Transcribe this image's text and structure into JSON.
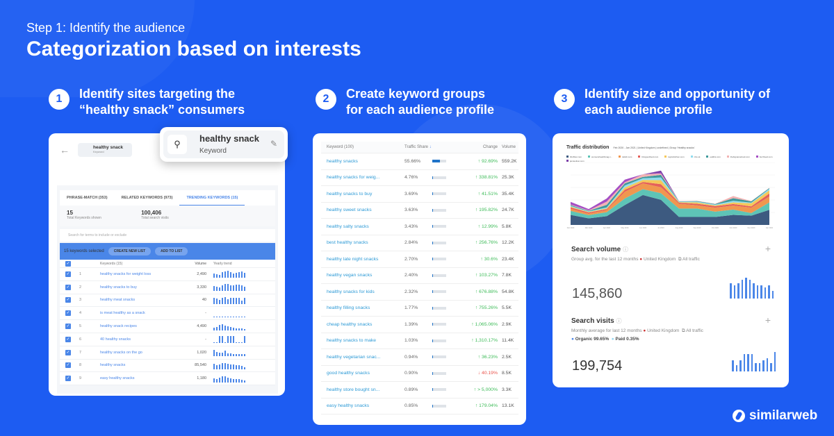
{
  "header": {
    "step": "Step 1: Identify the audience",
    "title": "Categorization based on interests"
  },
  "columns": [
    {
      "num": "1",
      "text": "Identify sites targeting the\n“healthy snack” consumers"
    },
    {
      "num": "2",
      "text": "Create keyword groups\nfor each audience profile"
    },
    {
      "num": "3",
      "text": "Identify size and opportunity of\neach audience profile"
    }
  ],
  "card1": {
    "search": {
      "value": "healthy snack",
      "type": "Keyword"
    },
    "tabs": [
      "PHRASE-MATCH (353)",
      "RELATED KEYWORDS (973)",
      "TRENDING KEYWORDS (15)"
    ],
    "stats": [
      {
        "value": "15",
        "label": "Total Keywords shown"
      },
      {
        "value": "100,406",
        "label": "Total search visits"
      }
    ],
    "search_placeholder": "Search for terms to include or exclude",
    "selected": "15 keywords selected",
    "create_list": "CREATE NEW LIST",
    "add_to_list": "ADD TO LIST",
    "columns": [
      "Keywords (15)",
      "Volume",
      "Yearly trend"
    ],
    "rows": [
      {
        "n": "1",
        "kw": "healthy snacks for weight loss",
        "vol": "2,490",
        "trend": [
          6,
          5,
          4,
          8,
          9,
          10,
          8,
          6,
          7,
          8,
          9,
          7
        ]
      },
      {
        "n": "2",
        "kw": "healthy snacks to buy",
        "vol": "3,330",
        "trend": [
          7,
          6,
          5,
          8,
          10,
          10,
          8,
          8,
          9,
          9,
          8,
          6
        ]
      },
      {
        "n": "3",
        "kw": "healthy meat snacks",
        "vol": "40",
        "trend": [
          9,
          8,
          6,
          9,
          10,
          7,
          9,
          9,
          9,
          9,
          5,
          9
        ]
      },
      {
        "n": "4",
        "kw": "is meat healthy as a snack",
        "vol": "-",
        "trend": [
          1,
          1,
          1,
          1,
          1,
          1,
          1,
          1,
          1,
          1,
          1,
          1
        ]
      },
      {
        "n": "5",
        "kw": "healthy snack recipes",
        "vol": "4,490",
        "trend": [
          4,
          5,
          8,
          9,
          7,
          6,
          5,
          4,
          3,
          3,
          3,
          2
        ]
      },
      {
        "n": "6",
        "kw": "40 healthy snacks",
        "vol": "-",
        "trend": [
          1,
          1,
          10,
          10,
          1,
          10,
          10,
          10,
          1,
          1,
          1,
          10
        ]
      },
      {
        "n": "7",
        "kw": "healthy snacks on the go",
        "vol": "1,020",
        "trend": [
          9,
          6,
          5,
          5,
          8,
          4,
          4,
          3,
          3,
          3,
          3,
          3
        ]
      },
      {
        "n": "8",
        "kw": "healthy snacks",
        "vol": "85,540",
        "trend": [
          8,
          6,
          7,
          9,
          9,
          8,
          7,
          7,
          6,
          6,
          5,
          3
        ]
      },
      {
        "n": "9",
        "kw": "easy healthy snacks",
        "vol": "1,180",
        "trend": [
          6,
          5,
          7,
          9,
          9,
          7,
          6,
          5,
          5,
          5,
          4,
          3
        ]
      }
    ]
  },
  "card2": {
    "columns": [
      "Keyword (100)",
      "Traffic Share",
      "Change",
      "Volume"
    ],
    "rows": [
      {
        "kw": "healthy snacks",
        "share": "55.66%",
        "pct": 55.66,
        "change": "92.69%",
        "dir": "up",
        "vol": "559.2K"
      },
      {
        "kw": "healthy snacks for weig...",
        "share": "4.76%",
        "pct": 4.76,
        "change": "338.81%",
        "dir": "up",
        "vol": "25.3K"
      },
      {
        "kw": "healthy snacks to buy",
        "share": "3.69%",
        "pct": 3.69,
        "change": "41.51%",
        "dir": "up",
        "vol": "35.4K"
      },
      {
        "kw": "healthy sweet snacks",
        "share": "3.63%",
        "pct": 3.63,
        "change": "195.82%",
        "dir": "up",
        "vol": "24.7K"
      },
      {
        "kw": "healthy salty snacks",
        "share": "3.43%",
        "pct": 3.43,
        "change": "12.99%",
        "dir": "up",
        "vol": "5.8K"
      },
      {
        "kw": "best healthy snacks",
        "share": "2.84%",
        "pct": 2.84,
        "change": "256.76%",
        "dir": "up",
        "vol": "12.2K"
      },
      {
        "kw": "healthy late night snacks",
        "share": "2.70%",
        "pct": 2.7,
        "change": "30.6%",
        "dir": "up",
        "vol": "23.4K"
      },
      {
        "kw": "healthy vegan snacks",
        "share": "2.40%",
        "pct": 2.4,
        "change": "103.27%",
        "dir": "up",
        "vol": "7.8K"
      },
      {
        "kw": "healthy snacks for kids",
        "share": "2.32%",
        "pct": 2.32,
        "change": "676.88%",
        "dir": "up",
        "vol": "54.8K"
      },
      {
        "kw": "healthy filling snacks",
        "share": "1.77%",
        "pct": 1.77,
        "change": "755.26%",
        "dir": "up",
        "vol": "5.5K"
      },
      {
        "kw": "cheap healthy snacks",
        "share": "1.39%",
        "pct": 1.39,
        "change": "1,065.06%",
        "dir": "up",
        "vol": "2.9K"
      },
      {
        "kw": "healthy snacks to make",
        "share": "1.03%",
        "pct": 1.03,
        "change": "1,310.17%",
        "dir": "up",
        "vol": "11.4K"
      },
      {
        "kw": "healthy vegetarian snac...",
        "share": "0.94%",
        "pct": 0.94,
        "change": "36.23%",
        "dir": "up",
        "vol": "2.5K"
      },
      {
        "kw": "good healthy snacks",
        "share": "0.90%",
        "pct": 0.9,
        "change": "40.19%",
        "dir": "down",
        "vol": "8.5K"
      },
      {
        "kw": "healthy store bought sn...",
        "share": "0.89%",
        "pct": 0.89,
        "change": "> 5,000%",
        "dir": "up",
        "vol": "3.3K"
      },
      {
        "kw": "easy healthy snacks",
        "share": "0.85%",
        "pct": 0.85,
        "change": "179.04%",
        "dir": "up",
        "vol": "13.1K"
      }
    ]
  },
  "card3": {
    "traffic": {
      "title": "Traffic distribution",
      "subtitle": "Feb 2020 - Jan 2021 | United Kingdom | undefined | Group 'Healthy snacks'"
    },
    "search_volume": {
      "title": "Search volume",
      "sub": "Group avg. for the last 12 months",
      "country": "United Kingdom",
      "traffic": "All traffic",
      "value": "145,860",
      "spark": [
        8,
        7,
        8,
        10,
        11,
        10,
        8,
        7,
        7,
        6,
        7,
        4
      ]
    },
    "search_visits": {
      "title": "Search visits",
      "sub": "Monthly average for last 12 months",
      "country": "United Kingdom",
      "traffic": "All traffic",
      "organic": "Organic 99.65%",
      "paid": "Paid 0.35%",
      "value": "199,754",
      "spark": [
        5,
        3,
        5,
        8,
        8,
        8,
        4,
        4,
        5,
        6,
        4,
        9
      ]
    }
  },
  "chart_data": {
    "type": "area",
    "stacked": true,
    "title": "Traffic distribution",
    "grid": true,
    "legend": "top",
    "x": [
      "Feb 2020",
      "Mar 2020",
      "Apr 2020",
      "May 2020",
      "Jun 2020",
      "Jul 2020",
      "Aug 2020",
      "Sep 2020",
      "Oct 2020",
      "Nov 2020",
      "Dec 2020",
      "Jan 2021"
    ],
    "series": [
      {
        "name": "bbcfitter.com",
        "color": "#3d5a80",
        "values": [
          38,
          25,
          33,
          75,
          113,
          95,
          30,
          30,
          30,
          38,
          35,
          57
        ]
      },
      {
        "name": "womenshealthmag.c...",
        "color": "#5ec4b6",
        "values": [
          15,
          12,
          15,
          25,
          22,
          25,
          32,
          32,
          20,
          20,
          10,
          28
        ]
      },
      {
        "name": "delish.com",
        "color": "#f0974f",
        "values": [
          8,
          6,
          8,
          25,
          22,
          22,
          18,
          12,
          15,
          15,
          20,
          22
        ]
      },
      {
        "name": "bbcgoodfood.com",
        "color": "#e5605a",
        "values": [
          5,
          4,
          4,
          8,
          5,
          12,
          4,
          6,
          6,
          6,
          5,
          12
        ]
      },
      {
        "name": "taylorkitchen.com",
        "color": "#f5c85a",
        "values": [
          3,
          2,
          3,
          8,
          8,
          15,
          2,
          5,
          3,
          6,
          12,
          12
        ]
      },
      {
        "name": "nhs.uk",
        "color": "#8fdcef",
        "values": [
          3,
          2,
          3,
          8,
          6,
          10,
          2,
          3,
          3,
          6,
          2,
          6
        ]
      },
      {
        "name": "eatthis.com",
        "color": "#3e9a9c",
        "values": [
          3,
          2,
          10,
          8,
          5,
          10,
          1,
          2,
          2,
          10,
          5,
          2
        ]
      },
      {
        "name": "thebignamefood.com",
        "color": "#f2b3b3",
        "values": [
          2,
          2,
          12,
          4,
          10,
          5,
          1,
          1,
          1,
          8,
          1,
          1
        ]
      },
      {
        "name": "buzzfeed.com",
        "color": "#a54fc4",
        "values": [
          10,
          5,
          12,
          10,
          0,
          3,
          0,
          0,
          0,
          0,
          0,
          0
        ]
      },
      {
        "name": "jamieoliver.com",
        "color": "#7b3fa8",
        "values": [
          0,
          0,
          0,
          0,
          0,
          8,
          0,
          0,
          0,
          0,
          0,
          0
        ]
      }
    ]
  },
  "logo": "similarweb"
}
